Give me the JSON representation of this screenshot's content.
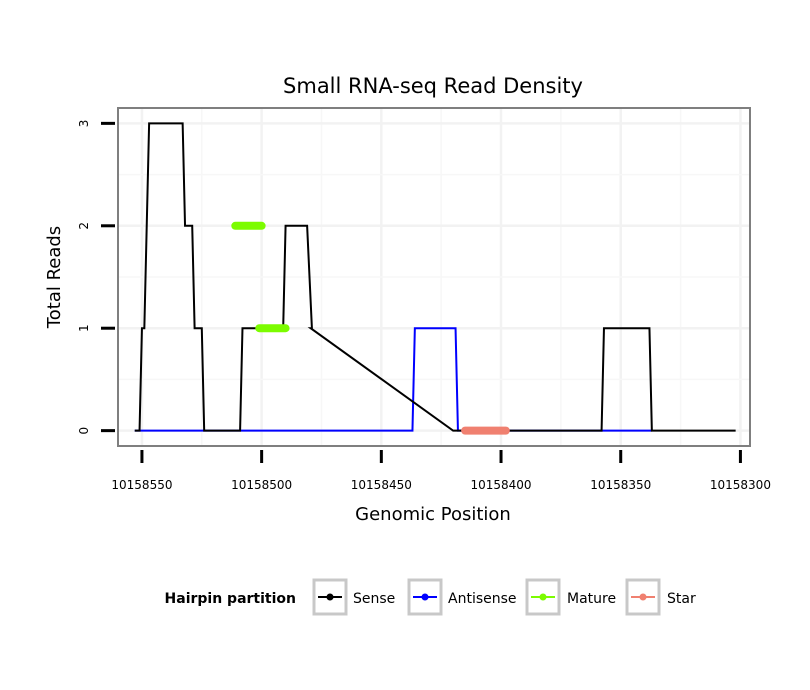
{
  "chart_data": {
    "type": "line",
    "title": "Small RNA-seq Read Density",
    "xlabel": "Genomic Position",
    "ylabel": "Total Reads",
    "x_reversed": true,
    "xlim": [
      10158560,
      10158296
    ],
    "ylim": [
      -0.15,
      3.15
    ],
    "x_ticks": [
      10158550,
      10158500,
      10158450,
      10158400,
      10158350,
      10158300
    ],
    "x_tick_labels": [
      "10158550",
      "10158500",
      "10158450",
      "10158400",
      "10158350",
      "10158300"
    ],
    "y_ticks": [
      0,
      1,
      2,
      3
    ],
    "y_tick_labels": [
      "0",
      "1",
      "2",
      "3"
    ],
    "grid": true,
    "legend": {
      "title": "Hairpin partition",
      "position": "bottom",
      "entries": [
        {
          "label": "Sense",
          "color": "#000000"
        },
        {
          "label": "Antisense",
          "color": "#0000ff"
        },
        {
          "label": "Mature",
          "color": "#7cfc00"
        },
        {
          "label": "Star",
          "color": "#f08070"
        }
      ]
    },
    "series": [
      {
        "name": "Sense",
        "color": "#000000",
        "x": [
          10158553,
          10158551,
          10158550,
          10158549,
          10158547,
          10158533,
          10158532,
          10158529,
          10158528,
          10158525,
          10158524,
          10158521,
          10158509,
          10158508,
          10158491,
          10158490,
          10158481,
          10158479,
          10158479.5,
          10158420,
          10158358,
          10158357,
          10158338,
          10158337,
          10158302
        ],
        "y": [
          0,
          0,
          1,
          1,
          3,
          3,
          2,
          2,
          1,
          1,
          0,
          0,
          0,
          1,
          1,
          2,
          2,
          1,
          1,
          0,
          0,
          1,
          1,
          0,
          0
        ]
      },
      {
        "name": "Antisense",
        "color": "#0000ff",
        "x": [
          10158553,
          10158437,
          10158436,
          10158419,
          10158418,
          10158337
        ],
        "y": [
          0,
          0,
          1,
          1,
          0,
          0
        ]
      },
      {
        "name": "Mature",
        "color": "#7cfc00",
        "segments": [
          {
            "x": [
              10158511,
              10158500
            ],
            "y": [
              2,
              2
            ]
          },
          {
            "x": [
              10158501,
              10158490
            ],
            "y": [
              1,
              1
            ]
          }
        ]
      },
      {
        "name": "Star",
        "color": "#f08070",
        "segments": [
          {
            "x": [
              10158415,
              10158398
            ],
            "y": [
              0,
              0
            ]
          }
        ]
      }
    ]
  }
}
